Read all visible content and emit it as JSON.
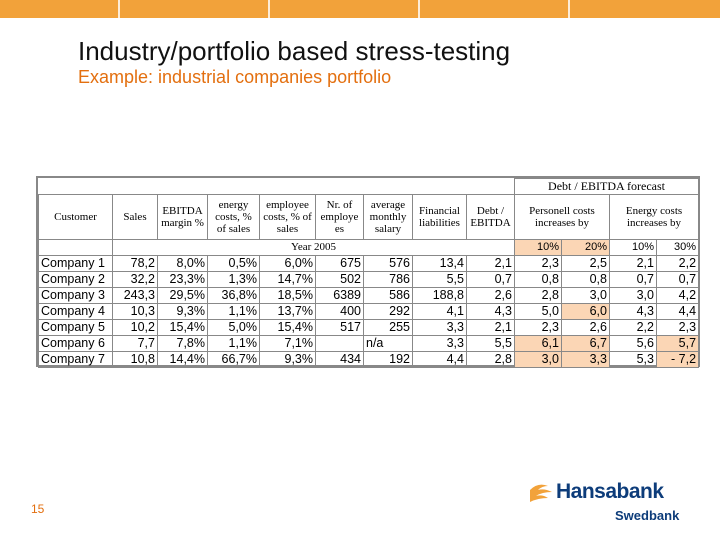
{
  "slide": {
    "title": "Industry/portfolio based stress-testing",
    "subtitle": "Example: industrial companies portfolio",
    "page_number": "15",
    "accent_color": "#e36f0f",
    "bar_color": "#f2a23a"
  },
  "logo": {
    "brand": "Hansabank",
    "sub": "Swedbank"
  },
  "table": {
    "group_header": "Debt / EBITDA forecast",
    "headers": {
      "customer": "Customer",
      "sales": "Sales",
      "ebitda": "EBITDA margin %",
      "energy": "energy costs, % of sales",
      "employee": "employee costs, % of sales",
      "nr_employees": "Nr. of employe es",
      "avg_salary": "average monthly salary",
      "fin_liab": "Financial liabilities",
      "debt_ebitda": "Debt / EBITDA",
      "personnel": "Personell costs increases by",
      "energy_inc": "Energy costs increases by"
    },
    "year_label": "Year 2005",
    "pct": [
      "10%",
      "20%",
      "10%",
      "30%"
    ],
    "rows": [
      {
        "name": "Company 1",
        "sales": "78,2",
        "ebitda": "8,0%",
        "energy": "0,5%",
        "employee": "6,0%",
        "emp": "675",
        "salary": "576",
        "fin": "13,4",
        "de": "2,1",
        "p10": "2,3",
        "p20": "2,5",
        "e10": "2,1",
        "e30": "2,2"
      },
      {
        "name": "Company 2",
        "sales": "32,2",
        "ebitda": "23,3%",
        "energy": "1,3%",
        "employee": "14,7%",
        "emp": "502",
        "salary": "786",
        "fin": "5,5",
        "de": "0,7",
        "p10": "0,8",
        "p20": "0,8",
        "e10": "0,7",
        "e30": "0,7"
      },
      {
        "name": "Company 3",
        "sales": "243,3",
        "ebitda": "29,5%",
        "energy": "36,8%",
        "employee": "18,5%",
        "emp": "6389",
        "salary": "586",
        "fin": "188,8",
        "de": "2,6",
        "p10": "2,8",
        "p20": "3,0",
        "e10": "3,0",
        "e30": "4,2"
      },
      {
        "name": "Company 4",
        "sales": "10,3",
        "ebitda": "9,3%",
        "energy": "1,1%",
        "employee": "13,7%",
        "emp": "400",
        "salary": "292",
        "fin": "4,1",
        "de": "4,3",
        "p10": "5,0",
        "p20": "6,0",
        "e10": "4,3",
        "e30": "4,4"
      },
      {
        "name": "Company 5",
        "sales": "10,2",
        "ebitda": "15,4%",
        "energy": "5,0%",
        "employee": "15,4%",
        "emp": "517",
        "salary": "255",
        "fin": "3,3",
        "de": "2,1",
        "p10": "2,3",
        "p20": "2,6",
        "e10": "2,2",
        "e30": "2,3"
      },
      {
        "name": "Company 6",
        "sales": "7,7",
        "ebitda": "7,8%",
        "energy": "1,1%",
        "employee": "7,1%",
        "emp": "",
        "salary": "n/a",
        "fin": "3,3",
        "de": "5,5",
        "p10": "6,1",
        "p20": "6,7",
        "e10": "5,6",
        "e30": "5,7"
      },
      {
        "name": "Company 7",
        "sales": "10,8",
        "ebitda": "14,4%",
        "energy": "66,7%",
        "employee": "9,3%",
        "emp": "434",
        "salary": "192",
        "fin": "4,4",
        "de": "2,8",
        "p10": "3,0",
        "p20": "3,3",
        "e10": "5,3",
        "e30": "-   7,2"
      }
    ],
    "highlight_color": "#fbd6b5"
  }
}
